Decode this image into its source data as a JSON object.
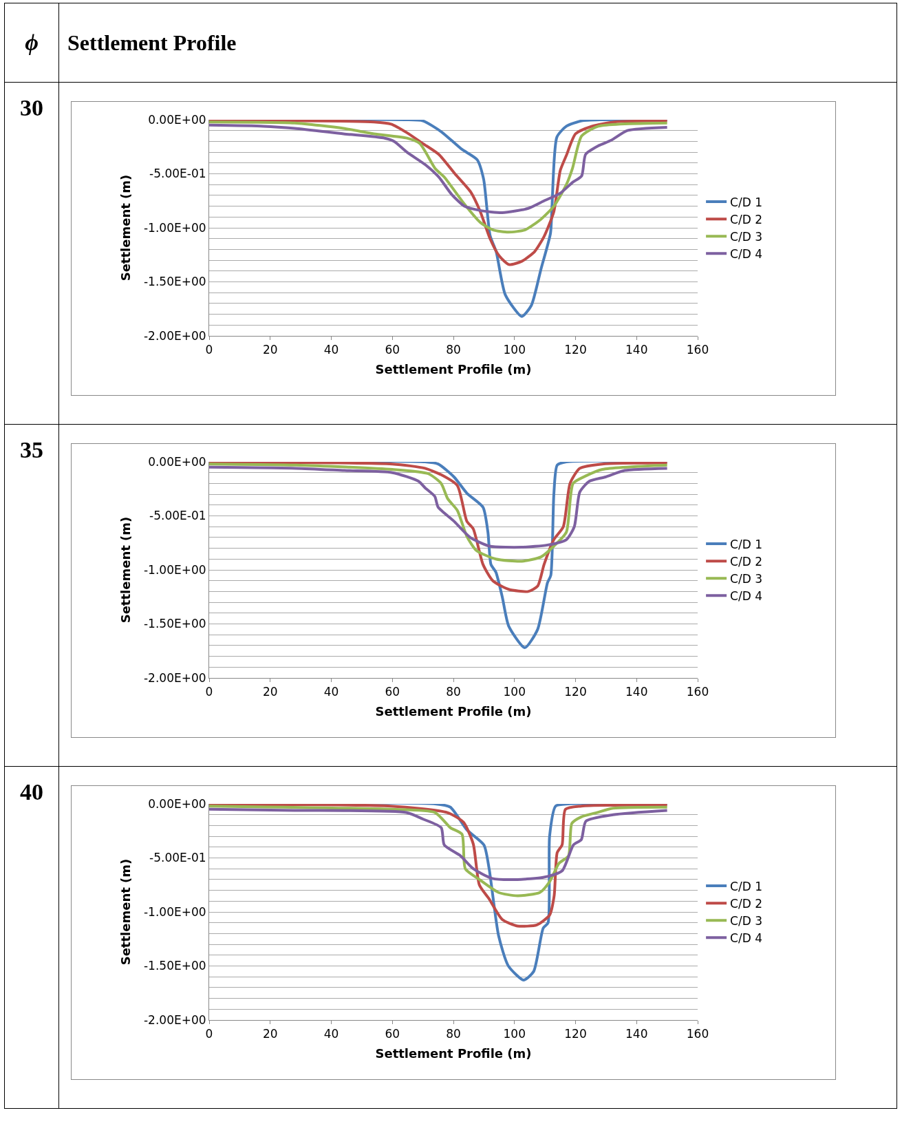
{
  "chart_data": [
    {
      "type": "other",
      "annotations": [
        "ϕ",
        "Settlement Profile"
      ]
    },
    {
      "type": "line",
      "title": "30",
      "xlabel": "Settlement Profile (m)",
      "ylabel": "Settlement (m)",
      "xlim": [
        0,
        160
      ],
      "xticks": [
        0,
        20,
        40,
        60,
        80,
        100,
        120,
        140,
        160
      ],
      "ylim": [
        -2,
        0
      ],
      "yticks": [
        {
          "value": 0,
          "label": "0.00E+00"
        },
        {
          "value": -0.1,
          "label": null
        },
        {
          "value": -0.2,
          "label": null
        },
        {
          "value": -0.3,
          "label": null
        },
        {
          "value": -0.4,
          "label": null
        },
        {
          "value": -0.5,
          "label": "-5.00E-01"
        },
        {
          "value": -0.6,
          "label": null
        },
        {
          "value": -0.7,
          "label": null
        },
        {
          "value": -0.8,
          "label": null
        },
        {
          "value": -0.9,
          "label": null
        },
        {
          "value": -1,
          "label": "-1.00E+00"
        },
        {
          "value": -1.1,
          "label": null
        },
        {
          "value": -1.2,
          "label": null
        },
        {
          "value": -1.3,
          "label": null
        },
        {
          "value": -1.4,
          "label": null
        },
        {
          "value": -1.5,
          "label": "-1.50E+00"
        },
        {
          "value": -1.6,
          "label": null
        },
        {
          "value": -1.7,
          "label": null
        },
        {
          "value": -1.8,
          "label": null
        },
        {
          "value": -1.9,
          "label": null
        },
        {
          "value": -2,
          "label": "-2.00E+00"
        }
      ],
      "grid": "y",
      "legend": "right",
      "marker": "none",
      "line_style": "solid",
      "series": [
        {
          "name": "C/D 1",
          "color": "#4a7ebb",
          "x": [
            0,
            64,
            70,
            76,
            82.6,
            87.8,
            89.9,
            92,
            94,
            97,
            102.4,
            105.5,
            108.7,
            111.8,
            112.3,
            113.9,
            117,
            122,
            128.5,
            150
          ],
          "values": [
            0,
            0,
            -0.01,
            -0.11,
            -0.27,
            -0.37,
            -0.55,
            -1.07,
            -1.22,
            -1.62,
            -1.82,
            -1.72,
            -1.38,
            -1.05,
            -0.8,
            -0.16,
            -0.06,
            -0.01,
            0,
            0
          ]
        },
        {
          "name": "C/D 2",
          "color": "#be4b48",
          "x": [
            0,
            54,
            59.6,
            64.8,
            70,
            75.2,
            80.5,
            85.7,
            88.8,
            92,
            95,
            98.2,
            102.4,
            106.6,
            109.7,
            112.9,
            115,
            117,
            120,
            125.4,
            132.7,
            150
          ],
          "values": [
            -0.005,
            -0.02,
            -0.04,
            -0.12,
            -0.22,
            -0.32,
            -0.5,
            -0.67,
            -0.85,
            -1.1,
            -1.26,
            -1.34,
            -1.31,
            -1.22,
            -1.08,
            -0.85,
            -0.47,
            -0.33,
            -0.13,
            -0.06,
            -0.02,
            -0.01
          ]
        },
        {
          "name": "C/D 3",
          "color": "#98b954",
          "x": [
            0,
            28,
            44,
            54,
            64.8,
            69,
            74,
            77,
            83.6,
            88.8,
            93,
            98,
            103.4,
            108.7,
            112.9,
            117,
            119,
            122,
            127.5,
            150
          ],
          "values": [
            -0.02,
            -0.03,
            -0.08,
            -0.13,
            -0.17,
            -0.22,
            -0.45,
            -0.53,
            -0.78,
            -0.95,
            -1.02,
            -1.04,
            -1.02,
            -0.92,
            -0.8,
            -0.6,
            -0.45,
            -0.15,
            -0.06,
            -0.03
          ]
        },
        {
          "name": "C/D 4",
          "color": "#7d60a0",
          "x": [
            0,
            17.8,
            28,
            44,
            57.5,
            60.6,
            64.8,
            71,
            75.2,
            79.4,
            83.6,
            88.8,
            96,
            104.5,
            109.7,
            115,
            119,
            122,
            123.3,
            127.5,
            131.7,
            137,
            150
          ],
          "values": [
            -0.05,
            -0.06,
            -0.08,
            -0.13,
            -0.17,
            -0.2,
            -0.3,
            -0.42,
            -0.53,
            -0.69,
            -0.8,
            -0.84,
            -0.86,
            -0.82,
            -0.75,
            -0.68,
            -0.58,
            -0.52,
            -0.32,
            -0.24,
            -0.19,
            -0.1,
            -0.07
          ]
        }
      ]
    },
    {
      "type": "line",
      "title": "35",
      "xlabel": "Settlement Profile (m)",
      "ylabel": "Settlement (m)",
      "xlim": [
        0,
        160
      ],
      "xticks": [
        0,
        20,
        40,
        60,
        80,
        100,
        120,
        140,
        160
      ],
      "ylim": [
        -2,
        0
      ],
      "yticks": [
        {
          "value": 0,
          "label": "0.00E+00"
        },
        {
          "value": -0.1,
          "label": null
        },
        {
          "value": -0.2,
          "label": null
        },
        {
          "value": -0.3,
          "label": null
        },
        {
          "value": -0.4,
          "label": null
        },
        {
          "value": -0.5,
          "label": "-5.00E-01"
        },
        {
          "value": -0.6,
          "label": null
        },
        {
          "value": -0.7,
          "label": null
        },
        {
          "value": -0.8,
          "label": null
        },
        {
          "value": -0.9,
          "label": null
        },
        {
          "value": -1,
          "label": "-1.00E+00"
        },
        {
          "value": -1.1,
          "label": null
        },
        {
          "value": -1.2,
          "label": null
        },
        {
          "value": -1.3,
          "label": null
        },
        {
          "value": -1.4,
          "label": null
        },
        {
          "value": -1.5,
          "label": "-1.50E+00"
        },
        {
          "value": -1.6,
          "label": null
        },
        {
          "value": -1.7,
          "label": null
        },
        {
          "value": -1.8,
          "label": null
        },
        {
          "value": -1.9,
          "label": null
        },
        {
          "value": -2,
          "label": "-2.00E+00"
        }
      ],
      "grid": "y",
      "legend": "right",
      "marker": "none",
      "line_style": "solid",
      "series": [
        {
          "name": "C/D 1",
          "color": "#4a7ebb",
          "x": [
            0,
            70.7,
            75,
            80.2,
            84.4,
            89.7,
            91.3,
            92.3,
            93.9,
            96,
            98.1,
            103.4,
            107.6,
            110.8,
            111.9,
            112.9,
            114,
            117,
            150
          ],
          "values": [
            0,
            0,
            -0.02,
            -0.14,
            -0.29,
            -0.42,
            -0.65,
            -0.95,
            -1.02,
            -1.25,
            -1.52,
            -1.72,
            -1.55,
            -1.12,
            -1.05,
            -0.3,
            -0.03,
            0,
            0
          ]
        },
        {
          "name": "C/D 2",
          "color": "#be4b48",
          "x": [
            0,
            60,
            70.7,
            76,
            81.3,
            84.4,
            86.5,
            89.7,
            92.9,
            98.1,
            104.5,
            107.6,
            109.7,
            112.9,
            116,
            118.2,
            121.4,
            128.8,
            150
          ],
          "values": [
            -0.005,
            -0.02,
            -0.06,
            -0.12,
            -0.22,
            -0.55,
            -0.62,
            -0.95,
            -1.1,
            -1.18,
            -1.2,
            -1.15,
            -0.95,
            -0.72,
            -0.6,
            -0.2,
            -0.06,
            -0.02,
            -0.01
          ]
        },
        {
          "name": "C/D 3",
          "color": "#98b954",
          "x": [
            0,
            28.5,
            60,
            71.8,
            76,
            78.1,
            81.3,
            84.4,
            87.5,
            93.9,
            102.4,
            108.7,
            112.9,
            117,
            119.2,
            123.4,
            128.8,
            150
          ],
          "values": [
            -0.02,
            -0.03,
            -0.07,
            -0.11,
            -0.2,
            -0.34,
            -0.45,
            -0.69,
            -0.82,
            -0.9,
            -0.92,
            -0.88,
            -0.78,
            -0.65,
            -0.2,
            -0.13,
            -0.07,
            -0.03
          ]
        },
        {
          "name": "C/D 4",
          "color": "#7d60a0",
          "x": [
            0,
            28.5,
            44.3,
            60,
            68.6,
            70.7,
            73.9,
            75,
            80.2,
            85.5,
            91.8,
            102.4,
            110.8,
            117,
            119.6,
            121.4,
            124.5,
            129.8,
            136.1,
            150
          ],
          "values": [
            -0.05,
            -0.06,
            -0.08,
            -0.1,
            -0.18,
            -0.24,
            -0.32,
            -0.42,
            -0.55,
            -0.7,
            -0.78,
            -0.79,
            -0.77,
            -0.72,
            -0.6,
            -0.28,
            -0.18,
            -0.14,
            -0.08,
            -0.06
          ]
        }
      ]
    },
    {
      "type": "line",
      "title": "40",
      "xlabel": "Settlement Profile (m)",
      "ylabel": "Settlement (m)",
      "xlim": [
        0,
        160
      ],
      "xticks": [
        0,
        20,
        40,
        60,
        80,
        100,
        120,
        140,
        160
      ],
      "ylim": [
        -2,
        0
      ],
      "yticks": [
        {
          "value": 0,
          "label": "0.00E+00"
        },
        {
          "value": -0.1,
          "label": null
        },
        {
          "value": -0.2,
          "label": null
        },
        {
          "value": -0.3,
          "label": null
        },
        {
          "value": -0.4,
          "label": null
        },
        {
          "value": -0.5,
          "label": "-5.00E-01"
        },
        {
          "value": -0.6,
          "label": null
        },
        {
          "value": -0.7,
          "label": null
        },
        {
          "value": -0.8,
          "label": null
        },
        {
          "value": -0.9,
          "label": null
        },
        {
          "value": -1,
          "label": "-1.00E+00"
        },
        {
          "value": -1.1,
          "label": null
        },
        {
          "value": -1.2,
          "label": null
        },
        {
          "value": -1.3,
          "label": null
        },
        {
          "value": -1.4,
          "label": null
        },
        {
          "value": -1.5,
          "label": "-1.50E+00"
        },
        {
          "value": -1.6,
          "label": null
        },
        {
          "value": -1.7,
          "label": null
        },
        {
          "value": -1.8,
          "label": null
        },
        {
          "value": -1.9,
          "label": null
        },
        {
          "value": -2,
          "label": "-2.00E+00"
        }
      ],
      "grid": "y",
      "legend": "right",
      "marker": "none",
      "line_style": "solid",
      "series": [
        {
          "name": "C/D 1",
          "color": "#4a7ebb",
          "x": [
            0,
            74,
            79,
            84.4,
            90,
            91.7,
            94.8,
            98,
            103,
            106.3,
            109.4,
            111,
            111.5,
            113.5,
            117.7,
            150
          ],
          "values": [
            0,
            0,
            -0.03,
            -0.24,
            -0.38,
            -0.6,
            -1.22,
            -1.5,
            -1.63,
            -1.55,
            -1.15,
            -1.1,
            -0.3,
            -0.02,
            0,
            0
          ]
        },
        {
          "name": "C/D 2",
          "color": "#be4b48",
          "x": [
            0,
            59.4,
            78,
            83.3,
            86.5,
            88.5,
            91.7,
            96,
            101,
            107.3,
            111.5,
            113,
            114,
            115.6,
            116.7,
            121.9,
            150
          ],
          "values": [
            -0.005,
            -0.02,
            -0.08,
            -0.17,
            -0.37,
            -0.75,
            -0.88,
            -1.07,
            -1.13,
            -1.12,
            -1.03,
            -0.85,
            -0.45,
            -0.38,
            -0.05,
            -0.02,
            -0.01
          ]
        },
        {
          "name": "C/D 3",
          "color": "#98b954",
          "x": [
            0,
            59.4,
            74,
            79,
            82.8,
            83.9,
            88.5,
            94.8,
            101,
            108.3,
            111.5,
            114.6,
            117.7,
            118.8,
            121.9,
            127,
            132.3,
            150
          ],
          "values": [
            -0.02,
            -0.05,
            -0.08,
            -0.22,
            -0.28,
            -0.6,
            -0.7,
            -0.82,
            -0.85,
            -0.82,
            -0.72,
            -0.55,
            -0.48,
            -0.18,
            -0.12,
            -0.08,
            -0.04,
            -0.03
          ]
        },
        {
          "name": "C/D 4",
          "color": "#7d60a0",
          "x": [
            0,
            28,
            64.6,
            70,
            76,
            77,
            82.3,
            86.5,
            92.7,
            101,
            109.4,
            115.6,
            119.3,
            121.9,
            123.4,
            132.3,
            150
          ],
          "values": [
            -0.05,
            -0.06,
            -0.08,
            -0.14,
            -0.22,
            -0.38,
            -0.48,
            -0.6,
            -0.69,
            -0.7,
            -0.68,
            -0.62,
            -0.38,
            -0.33,
            -0.16,
            -0.1,
            -0.06
          ]
        }
      ]
    }
  ]
}
